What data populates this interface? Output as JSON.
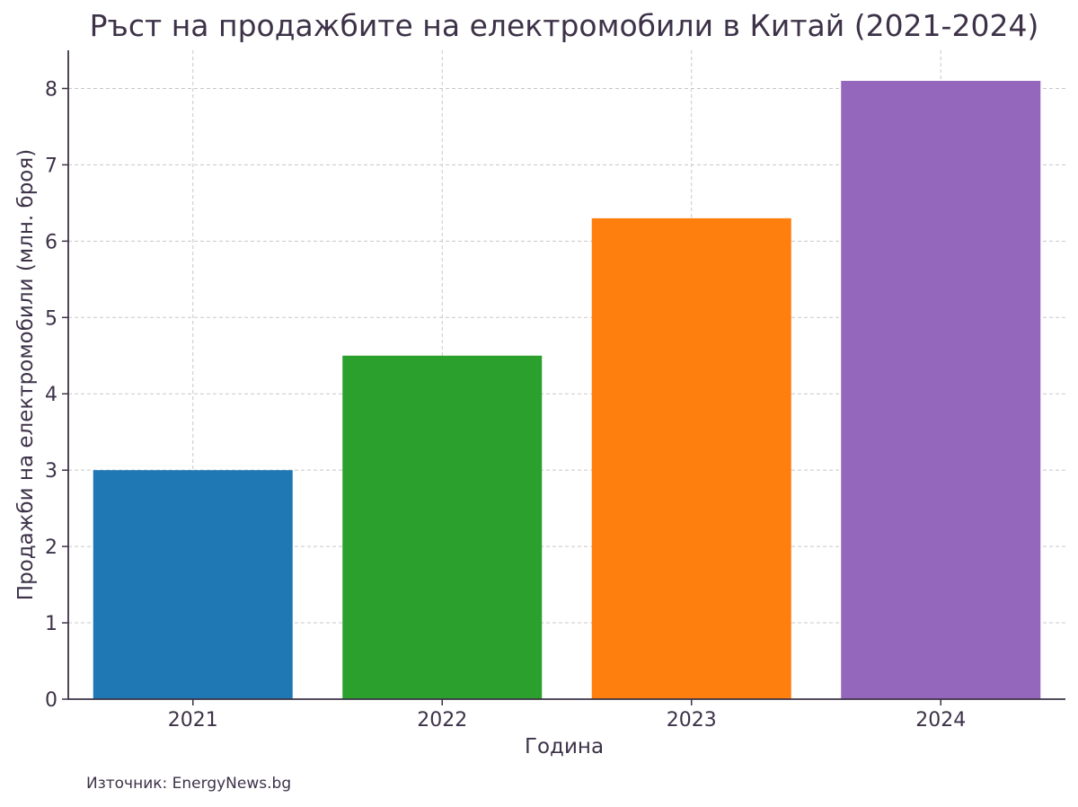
{
  "chart_data": {
    "type": "bar",
    "title": "Ръст на продажбите на електромобили в Китай (2021-2024)",
    "xlabel": "Година",
    "ylabel": "Продажби на електромобили (млн. броя)",
    "categories": [
      "2021",
      "2022",
      "2023",
      "2024"
    ],
    "values": [
      3.0,
      4.5,
      6.3,
      8.1
    ],
    "colors": [
      "#1f77b4",
      "#2ca02c",
      "#ff7f0e",
      "#9467bd"
    ],
    "ylim": [
      0,
      8.5
    ],
    "yticks": [
      0,
      1,
      2,
      3,
      4,
      5,
      6,
      7,
      8
    ],
    "grid": true,
    "legend": "none"
  },
  "source_note": "Източник: EnergyNews.bg",
  "colors": {
    "text": "#3d3248",
    "axis": "#3d3248",
    "grid": "#c8c8c8"
  }
}
